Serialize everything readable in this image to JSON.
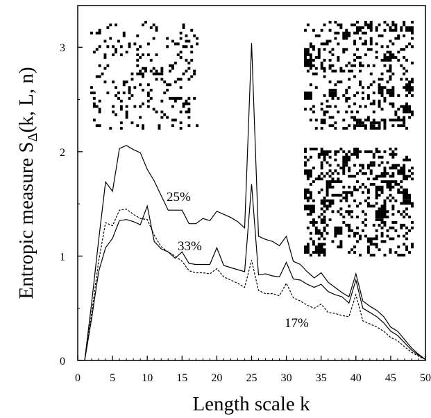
{
  "chart_data": {
    "type": "line",
    "xlabel": "Length scale k",
    "ylabel_main": "Entropic measure S",
    "ylabel_sub": "Δ",
    "ylabel_args": "(k, L, n)",
    "xlim": [
      0,
      50
    ],
    "ylim": [
      0,
      3.4
    ],
    "xticks": [
      "0",
      "5",
      "10",
      "15",
      "20",
      "25",
      "30",
      "35",
      "40",
      "45",
      "50"
    ],
    "yticks": [
      "0",
      "1",
      "2",
      "3"
    ],
    "grid": false,
    "legend": "none",
    "x": [
      1,
      2,
      3,
      4,
      5,
      6,
      7,
      8,
      9,
      10,
      11,
      12,
      13,
      14,
      15,
      16,
      17,
      18,
      19,
      20,
      21,
      22,
      23,
      24,
      25,
      26,
      27,
      28,
      29,
      30,
      31,
      32,
      33,
      34,
      35,
      36,
      37,
      38,
      39,
      40,
      41,
      42,
      43,
      44,
      45,
      46,
      47,
      48,
      49,
      50
    ],
    "series": [
      {
        "name": "25%",
        "style": "solid",
        "values": [
          0.0,
          0.55,
          1.15,
          1.71,
          1.62,
          2.03,
          2.06,
          2.02,
          1.99,
          1.83,
          1.72,
          1.58,
          1.44,
          1.44,
          1.44,
          1.31,
          1.31,
          1.36,
          1.34,
          1.43,
          1.4,
          1.37,
          1.33,
          1.27,
          3.04,
          1.19,
          1.16,
          1.14,
          1.1,
          1.19,
          0.95,
          0.92,
          0.85,
          0.79,
          0.84,
          0.75,
          0.7,
          0.65,
          0.61,
          0.83,
          0.57,
          0.52,
          0.48,
          0.42,
          0.32,
          0.28,
          0.2,
          0.12,
          0.06,
          0.01
        ]
      },
      {
        "name": "33%",
        "style": "solid",
        "values": [
          0.0,
          0.4,
          0.85,
          1.08,
          1.17,
          1.34,
          1.35,
          1.33,
          1.3,
          1.48,
          1.14,
          1.07,
          1.04,
          0.98,
          1.04,
          0.93,
          0.92,
          0.92,
          0.92,
          1.08,
          0.91,
          0.89,
          0.87,
          0.85,
          1.69,
          0.82,
          0.83,
          0.81,
          0.8,
          0.94,
          0.78,
          0.77,
          0.73,
          0.7,
          0.73,
          0.66,
          0.63,
          0.61,
          0.55,
          0.77,
          0.5,
          0.46,
          0.42,
          0.36,
          0.28,
          0.24,
          0.17,
          0.1,
          0.05,
          0.01
        ]
      },
      {
        "name": "17%",
        "style": "dashed",
        "values": [
          0.0,
          0.45,
          0.95,
          1.32,
          1.29,
          1.44,
          1.45,
          1.4,
          1.36,
          1.35,
          1.2,
          1.09,
          1.04,
          1.0,
          0.95,
          0.86,
          0.84,
          0.84,
          0.83,
          0.88,
          0.8,
          0.77,
          0.74,
          0.7,
          0.96,
          0.67,
          0.64,
          0.64,
          0.62,
          0.74,
          0.6,
          0.57,
          0.53,
          0.5,
          0.54,
          0.46,
          0.45,
          0.43,
          0.42,
          0.63,
          0.38,
          0.35,
          0.32,
          0.28,
          0.22,
          0.19,
          0.13,
          0.08,
          0.04,
          0.01
        ]
      }
    ],
    "insets": [
      {
        "name": "texture-17",
        "fill_fraction": 0.17,
        "blobs": false
      },
      {
        "name": "texture-25",
        "fill_fraction": 0.25,
        "blobs": true
      },
      {
        "name": "texture-33",
        "fill_fraction": 0.33,
        "blobs": true
      }
    ],
    "colors": {
      "line": "#000000",
      "background": "#ffffff"
    }
  }
}
